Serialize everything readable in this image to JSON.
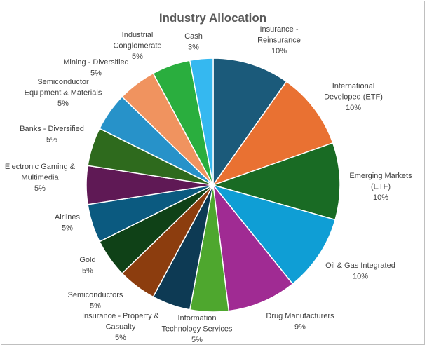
{
  "chart_data": {
    "type": "pie",
    "title": "Industry Allocation",
    "start_angle_deg": 0,
    "direction": "clockwise",
    "slices": [
      {
        "label": [
          "Insurance -",
          "Reinsurance"
        ],
        "pct_text": "10%",
        "value": 10,
        "color": "#1b5a7a"
      },
      {
        "label": [
          "International",
          "Developed (ETF)"
        ],
        "pct_text": "10%",
        "value": 10,
        "color": "#e97132"
      },
      {
        "label": [
          "Emerging Markets",
          "(ETF)"
        ],
        "pct_text": "10%",
        "value": 10,
        "color": "#196b24"
      },
      {
        "label": [
          "Oil & Gas Integrated"
        ],
        "pct_text": "10%",
        "value": 10,
        "color": "#0f9ed5"
      },
      {
        "label": [
          "Drug Manufacturers"
        ],
        "pct_text": "9%",
        "value": 9,
        "color": "#a02b93"
      },
      {
        "label": [
          "Information",
          "Technology Services"
        ],
        "pct_text": "5%",
        "value": 5,
        "color": "#4ea72e"
      },
      {
        "label": [
          "Insurance - Property &",
          "Casualty"
        ],
        "pct_text": "5%",
        "value": 5,
        "color": "#0d3a54"
      },
      {
        "label": [
          "Semiconductors"
        ],
        "pct_text": "5%",
        "value": 5,
        "color": "#8c3d0e"
      },
      {
        "label": [
          "Gold"
        ],
        "pct_text": "5%",
        "value": 5,
        "color": "#0f4117"
      },
      {
        "label": [
          "Airlines"
        ],
        "pct_text": "5%",
        "value": 5,
        "color": "#0b5a80"
      },
      {
        "label": [
          "Electronic Gaming &",
          "Multimedia"
        ],
        "pct_text": "5%",
        "value": 5,
        "color": "#5f1955"
      },
      {
        "label": [
          "Banks - Diversified"
        ],
        "pct_text": "5%",
        "value": 5,
        "color": "#2e6a1d"
      },
      {
        "label": [
          "Semiconductor",
          "Equipment & Materials"
        ],
        "pct_text": "5%",
        "value": 5,
        "color": "#2792c9"
      },
      {
        "label": [
          "Mining - Diversified"
        ],
        "pct_text": "5%",
        "value": 5,
        "color": "#f0935f"
      },
      {
        "label": [
          "Industrial",
          "Conglomerate"
        ],
        "pct_text": "5%",
        "value": 5,
        "color": "#2aae3e"
      },
      {
        "label": [
          "Cash"
        ],
        "pct_text": "3%",
        "value": 3,
        "color": "#35b8f0"
      }
    ]
  }
}
